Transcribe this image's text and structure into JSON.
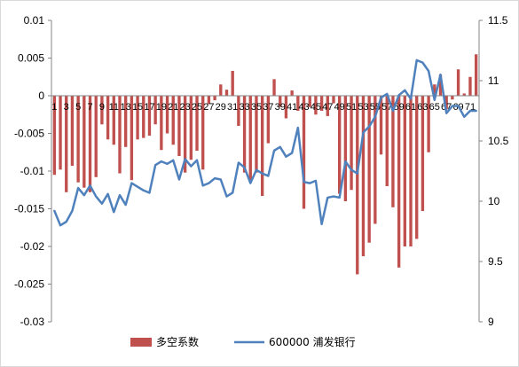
{
  "chart_data": {
    "type": "bar+line",
    "title": "",
    "left_axis": {
      "min": -0.03,
      "max": 0.01,
      "step": 0.005,
      "tick_labels": [
        "0.01",
        "0.005",
        "0",
        "-0.005",
        "-0.01",
        "-0.015",
        "-0.02",
        "-0.025",
        "-0.03"
      ]
    },
    "right_axis": {
      "min": 9,
      "max": 11.5,
      "step": 0.5,
      "tick_labels": [
        "11.5",
        "11",
        "10.5",
        "10",
        "9.5",
        "9"
      ]
    },
    "grid": false,
    "legend_position": "bottom",
    "categories": [
      "1",
      "2",
      "3",
      "4",
      "5",
      "6",
      "7",
      "8",
      "9",
      "10",
      "11",
      "12",
      "13",
      "14",
      "15",
      "16",
      "17",
      "18",
      "19",
      "20",
      "21",
      "22",
      "23",
      "24",
      "25",
      "26",
      "27",
      "28",
      "29",
      "30",
      "31",
      "32",
      "33",
      "34",
      "35",
      "36",
      "37",
      "38",
      "39",
      "40",
      "41",
      "42",
      "43",
      "44",
      "45",
      "46",
      "47",
      "48",
      "49",
      "50",
      "51",
      "52",
      "53",
      "54",
      "55",
      "56",
      "57",
      "58",
      "59",
      "60",
      "61",
      "62",
      "63",
      "64",
      "65",
      "66",
      "67",
      "68",
      "69",
      "70",
      "71",
      "72"
    ],
    "x_tick_labels": [
      "1",
      "3",
      "5",
      "7",
      "9",
      "11",
      "13",
      "15",
      "17",
      "19",
      "21",
      "23",
      "25",
      "27",
      "29",
      "31",
      "33",
      "35",
      "37",
      "39",
      "41",
      "43",
      "45",
      "47",
      "49",
      "51",
      "53",
      "55",
      "57",
      "59",
      "61",
      "63",
      "65",
      "67",
      "69",
      "71"
    ],
    "series": [
      {
        "name": "多空系数",
        "kind": "bar",
        "axis": "left",
        "color": "#C0504D",
        "values": [
          -0.0105,
          -0.0098,
          -0.0128,
          -0.0093,
          -0.0115,
          -0.0122,
          -0.0128,
          -0.0108,
          -0.0038,
          -0.0058,
          -0.0065,
          -0.0103,
          -0.0068,
          -0.0112,
          -0.0058,
          -0.0056,
          -0.0053,
          -0.0038,
          -0.0072,
          -0.005,
          -0.0065,
          -0.008,
          -0.0102,
          -0.0085,
          -0.0073,
          -0.0098,
          -0.0011,
          -0.0006,
          0.0015,
          0.0008,
          0.0033,
          -0.004,
          -0.0102,
          -0.0115,
          -0.0102,
          -0.0133,
          -0.0063,
          0.0022,
          -0.0015,
          -0.003,
          0.0007,
          -0.002,
          -0.015,
          -0.0015,
          -0.0025,
          -0.002,
          -0.0027,
          -0.001,
          -0.013,
          -0.014,
          -0.0125,
          -0.0237,
          -0.0213,
          -0.0195,
          -0.017,
          -0.0078,
          -0.012,
          -0.0148,
          -0.0228,
          -0.02,
          -0.02,
          -0.019,
          -0.0153,
          -0.0075,
          0.0015,
          0.0028,
          -0.0018,
          -0.0005,
          0.0035,
          0.0003,
          0.0025,
          0.0055
        ]
      },
      {
        "name": "600000 浦发银行",
        "kind": "line",
        "axis": "right",
        "color": "#4F81BD",
        "values": [
          9.92,
          9.8,
          9.83,
          9.92,
          10.11,
          10.05,
          10.13,
          10.04,
          9.98,
          10.06,
          9.91,
          10.05,
          9.97,
          10.15,
          10.12,
          10.09,
          10.07,
          10.3,
          10.33,
          10.31,
          10.34,
          10.18,
          10.35,
          10.29,
          10.34,
          10.13,
          10.15,
          10.19,
          10.18,
          10.04,
          10.07,
          10.32,
          10.28,
          10.15,
          10.26,
          10.23,
          10.21,
          10.42,
          10.45,
          10.37,
          10.4,
          10.61,
          10.16,
          10.15,
          10.17,
          9.81,
          10.03,
          10.04,
          10.03,
          10.33,
          10.26,
          10.23,
          10.57,
          10.62,
          10.7,
          10.86,
          10.89,
          10.75,
          10.88,
          10.92,
          10.85,
          11.17,
          11.15,
          11.08,
          10.84,
          11.05,
          10.73,
          10.79,
          10.79,
          10.7,
          10.75,
          10.75
        ]
      }
    ]
  }
}
